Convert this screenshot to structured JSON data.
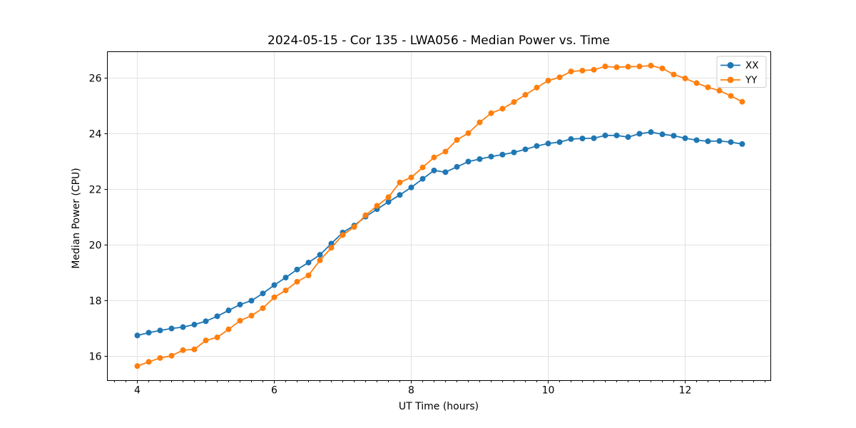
{
  "chart_data": {
    "type": "line",
    "title": "2024-05-15 - Cor 135 - LWA056 - Median Power vs. Time",
    "xlabel": "UT Time (hours)",
    "ylabel": "Median Power (CPU)",
    "grid": true,
    "legend_position": "upper right",
    "xlim": [
      3.5625,
      13.25
    ],
    "ylim": [
      15.128,
      26.949
    ],
    "xticks": [
      4,
      6,
      8,
      10,
      12
    ],
    "xtick_labels": [
      "4",
      "6",
      "8",
      "10",
      "12"
    ],
    "x_minor_step": 0.1667,
    "yticks": [
      16,
      18,
      20,
      22,
      24,
      26
    ],
    "ytick_labels": [
      "16",
      "18",
      "20",
      "22",
      "24",
      "26"
    ],
    "x": [
      4.0,
      4.167,
      4.333,
      4.5,
      4.667,
      4.833,
      5.0,
      5.167,
      5.333,
      5.5,
      5.667,
      5.833,
      6.0,
      6.167,
      6.333,
      6.5,
      6.667,
      6.833,
      7.0,
      7.167,
      7.333,
      7.5,
      7.667,
      7.833,
      8.0,
      8.167,
      8.333,
      8.5,
      8.667,
      8.833,
      9.0,
      9.167,
      9.333,
      9.5,
      9.667,
      9.833,
      10.0,
      10.167,
      10.333,
      10.5,
      10.667,
      10.833,
      11.0,
      11.167,
      11.333,
      11.5,
      11.667,
      11.833,
      12.0,
      12.167,
      12.333,
      12.5,
      12.667,
      12.833
    ],
    "series": [
      {
        "name": "XX",
        "color": "#1f77b4",
        "values": [
          16.75,
          16.85,
          16.93,
          17.0,
          17.05,
          17.14,
          17.26,
          17.44,
          17.65,
          17.86,
          18.0,
          18.26,
          18.56,
          18.83,
          19.12,
          19.37,
          19.65,
          20.05,
          20.45,
          20.7,
          21.02,
          21.29,
          21.55,
          21.8,
          22.07,
          22.38,
          22.68,
          22.62,
          22.81,
          23.0,
          23.09,
          23.18,
          23.25,
          23.33,
          23.44,
          23.56,
          23.65,
          23.7,
          23.81,
          23.83,
          23.84,
          23.94,
          23.94,
          23.88,
          24.0,
          24.06,
          23.98,
          23.93,
          23.84,
          23.77,
          23.73,
          23.74,
          23.7,
          23.63
        ]
      },
      {
        "name": "YY",
        "color": "#ff7f0e",
        "values": [
          15.65,
          15.8,
          15.94,
          16.02,
          16.22,
          16.25,
          16.57,
          16.68,
          16.97,
          17.28,
          17.46,
          17.73,
          18.12,
          18.37,
          18.68,
          18.91,
          19.45,
          19.9,
          20.36,
          20.65,
          21.07,
          21.41,
          21.72,
          22.25,
          22.43,
          22.79,
          23.15,
          23.36,
          23.78,
          24.02,
          24.41,
          24.74,
          24.9,
          25.14,
          25.4,
          25.66,
          25.91,
          26.03,
          26.24,
          26.27,
          26.3,
          26.42,
          26.39,
          26.41,
          26.42,
          26.45,
          26.35,
          26.13,
          25.99,
          25.82,
          25.67,
          25.55,
          25.36,
          25.15
        ]
      }
    ],
    "style": {
      "grid_color": "#e2e2e2",
      "spine_color": "#000000",
      "background": "#ffffff",
      "marker": "o",
      "marker_radius": 4,
      "line_width": 1.8,
      "legend_border": "#cccccc"
    }
  }
}
